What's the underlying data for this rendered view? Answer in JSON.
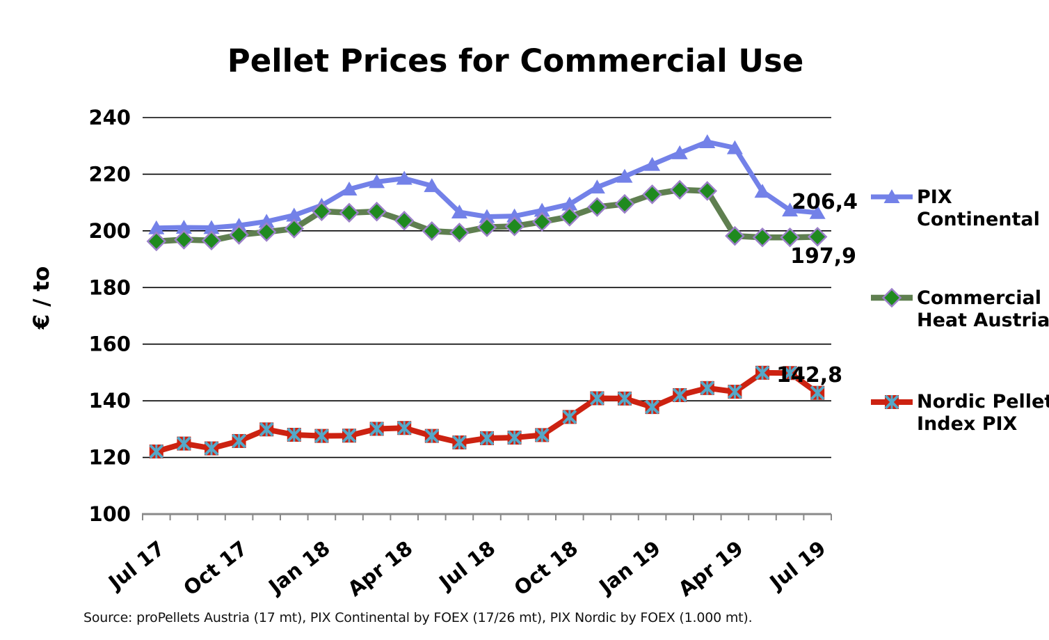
{
  "title": "Pellet Prices for Commercial Use",
  "y_axis": {
    "label": "€ / to",
    "tick_labels": [
      "240",
      "220",
      "200",
      "180",
      "160",
      "140",
      "120",
      "100"
    ]
  },
  "x_axis": {
    "tick_labels": [
      "Jul 17",
      "Oct 17",
      "Jan 18",
      "Apr 18",
      "Jul 18",
      "Oct 18",
      "Jan 19",
      "Apr 19",
      "Jul 19"
    ]
  },
  "end_labels": {
    "pix_continental": "206,4",
    "commercial_heat": "197,9",
    "nordic_pix": "142,8"
  },
  "legend": [
    {
      "line1": "PIX",
      "line2": "Continental"
    },
    {
      "line1": "Commercial",
      "line2": "Heat Austria"
    },
    {
      "line1": "Nordic Pellet",
      "line2": "Index PIX"
    }
  ],
  "source": "Source: proPellets Austria (17 mt), PIX Continental by FOEX (17/26 mt), PIX Nordic by FOEX (1.000 mt).",
  "colors": {
    "grid": "#000000",
    "axis": "#898989",
    "pix_continental": "#7381E8",
    "commercial_heat_line": "#5F7F50",
    "commercial_heat_marker": "#1F8A1F",
    "commercial_heat_marker_outline": "#9B80C8",
    "nordic_line": "#CC2211",
    "nordic_marker_x": "#55A8C8"
  },
  "chart_data": {
    "type": "line",
    "categories": [
      "Jul 17",
      "Aug 17",
      "Sep 17",
      "Oct 17",
      "Nov 17",
      "Dec 17",
      "Jan 18",
      "Feb 18",
      "Mar 18",
      "Apr 18",
      "May 18",
      "Jun 18",
      "Jul 18",
      "Aug 18",
      "Sep 18",
      "Oct 18",
      "Nov 18",
      "Dec 18",
      "Jan 19",
      "Feb 19",
      "Mar 19",
      "Apr 19",
      "May 19",
      "Jun 19",
      "Jul 19"
    ],
    "x_tick_every": 3,
    "ylim": [
      100,
      240
    ],
    "y_gridline_step": 20,
    "grid": true,
    "legend_position": "right",
    "title": "Pellet Prices for Commercial Use",
    "ylabel": "€ / to",
    "series": [
      {
        "name": "PIX Continental",
        "marker": "triangle",
        "color": "#7381E8",
        "line_width": 7,
        "values": [
          201.0,
          201.2,
          201.1,
          201.9,
          203.3,
          205.5,
          209.0,
          214.7,
          217.3,
          218.5,
          215.9,
          206.6,
          205.0,
          205.2,
          207.2,
          209.4,
          215.4,
          219.2,
          223.4,
          227.5,
          231.4,
          229.3,
          213.9,
          207.3,
          206.4
        ],
        "end_label": "206,4"
      },
      {
        "name": "Commercial Heat Austria",
        "marker": "diamond",
        "color": "#5F7F50",
        "line_width": 8.5,
        "marker_fill": "#1F8A1F",
        "marker_outline": "#9B80C8",
        "values": [
          196.3,
          196.9,
          196.6,
          198.6,
          199.6,
          200.8,
          206.9,
          206.4,
          206.8,
          203.6,
          199.9,
          199.4,
          201.3,
          201.6,
          203.2,
          205.0,
          208.4,
          209.5,
          212.9,
          214.5,
          214.1,
          198.2,
          197.7,
          197.7,
          197.9
        ],
        "end_label": "197,9"
      },
      {
        "name": "Nordic Pellet Index PIX",
        "marker": "x-square",
        "color": "#CC2211",
        "line_width": 8,
        "marker_x_color": "#55A8C8",
        "values": [
          122.1,
          124.9,
          123.2,
          125.8,
          129.9,
          128.0,
          127.6,
          127.7,
          130.1,
          130.4,
          127.6,
          125.3,
          126.8,
          127.0,
          127.9,
          134.3,
          140.9,
          140.8,
          137.8,
          142.0,
          144.5,
          143.2,
          149.9,
          149.8,
          142.8
        ],
        "end_label": "142,8"
      }
    ]
  }
}
